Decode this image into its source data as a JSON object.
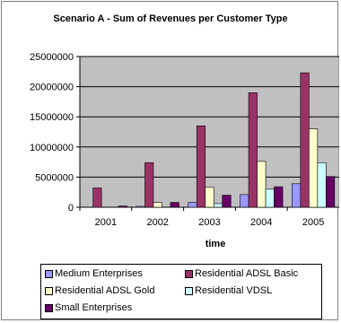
{
  "chart_data": {
    "type": "bar",
    "title": "Scenario A - Sum of Revenues per Customer Type",
    "xlabel": "time",
    "ylabel": "",
    "categories": [
      "2001",
      "2002",
      "2003",
      "2004",
      "2005"
    ],
    "ylim": [
      0,
      25000000
    ],
    "yticks": [
      "25000000",
      "20000000",
      "15000000",
      "10000000",
      "5000000",
      "0"
    ],
    "ytick_values": [
      25000000,
      20000000,
      15000000,
      10000000,
      5000000,
      0
    ],
    "grid": true,
    "legend_position": "bottom",
    "plot_background": "#c0c0c0",
    "series": [
      {
        "name": "Medium Enterprises",
        "color": "#9999ff",
        "values": [
          0,
          150000,
          800000,
          2100000,
          3900000
        ]
      },
      {
        "name": "Residential ADSL Basic",
        "color": "#993366",
        "values": [
          3200000,
          7400000,
          13500000,
          19000000,
          22300000
        ]
      },
      {
        "name": "Residential ADSL Gold",
        "color": "#ffffcc",
        "values": [
          0,
          800000,
          3300000,
          7600000,
          13000000
        ]
      },
      {
        "name": "Residential VDSL",
        "color": "#ccffff",
        "values": [
          0,
          0,
          600000,
          3000000,
          7400000
        ]
      },
      {
        "name": "Small Enterprises",
        "color": "#660066",
        "values": [
          200000,
          800000,
          2000000,
          3400000,
          5100000
        ]
      }
    ]
  }
}
